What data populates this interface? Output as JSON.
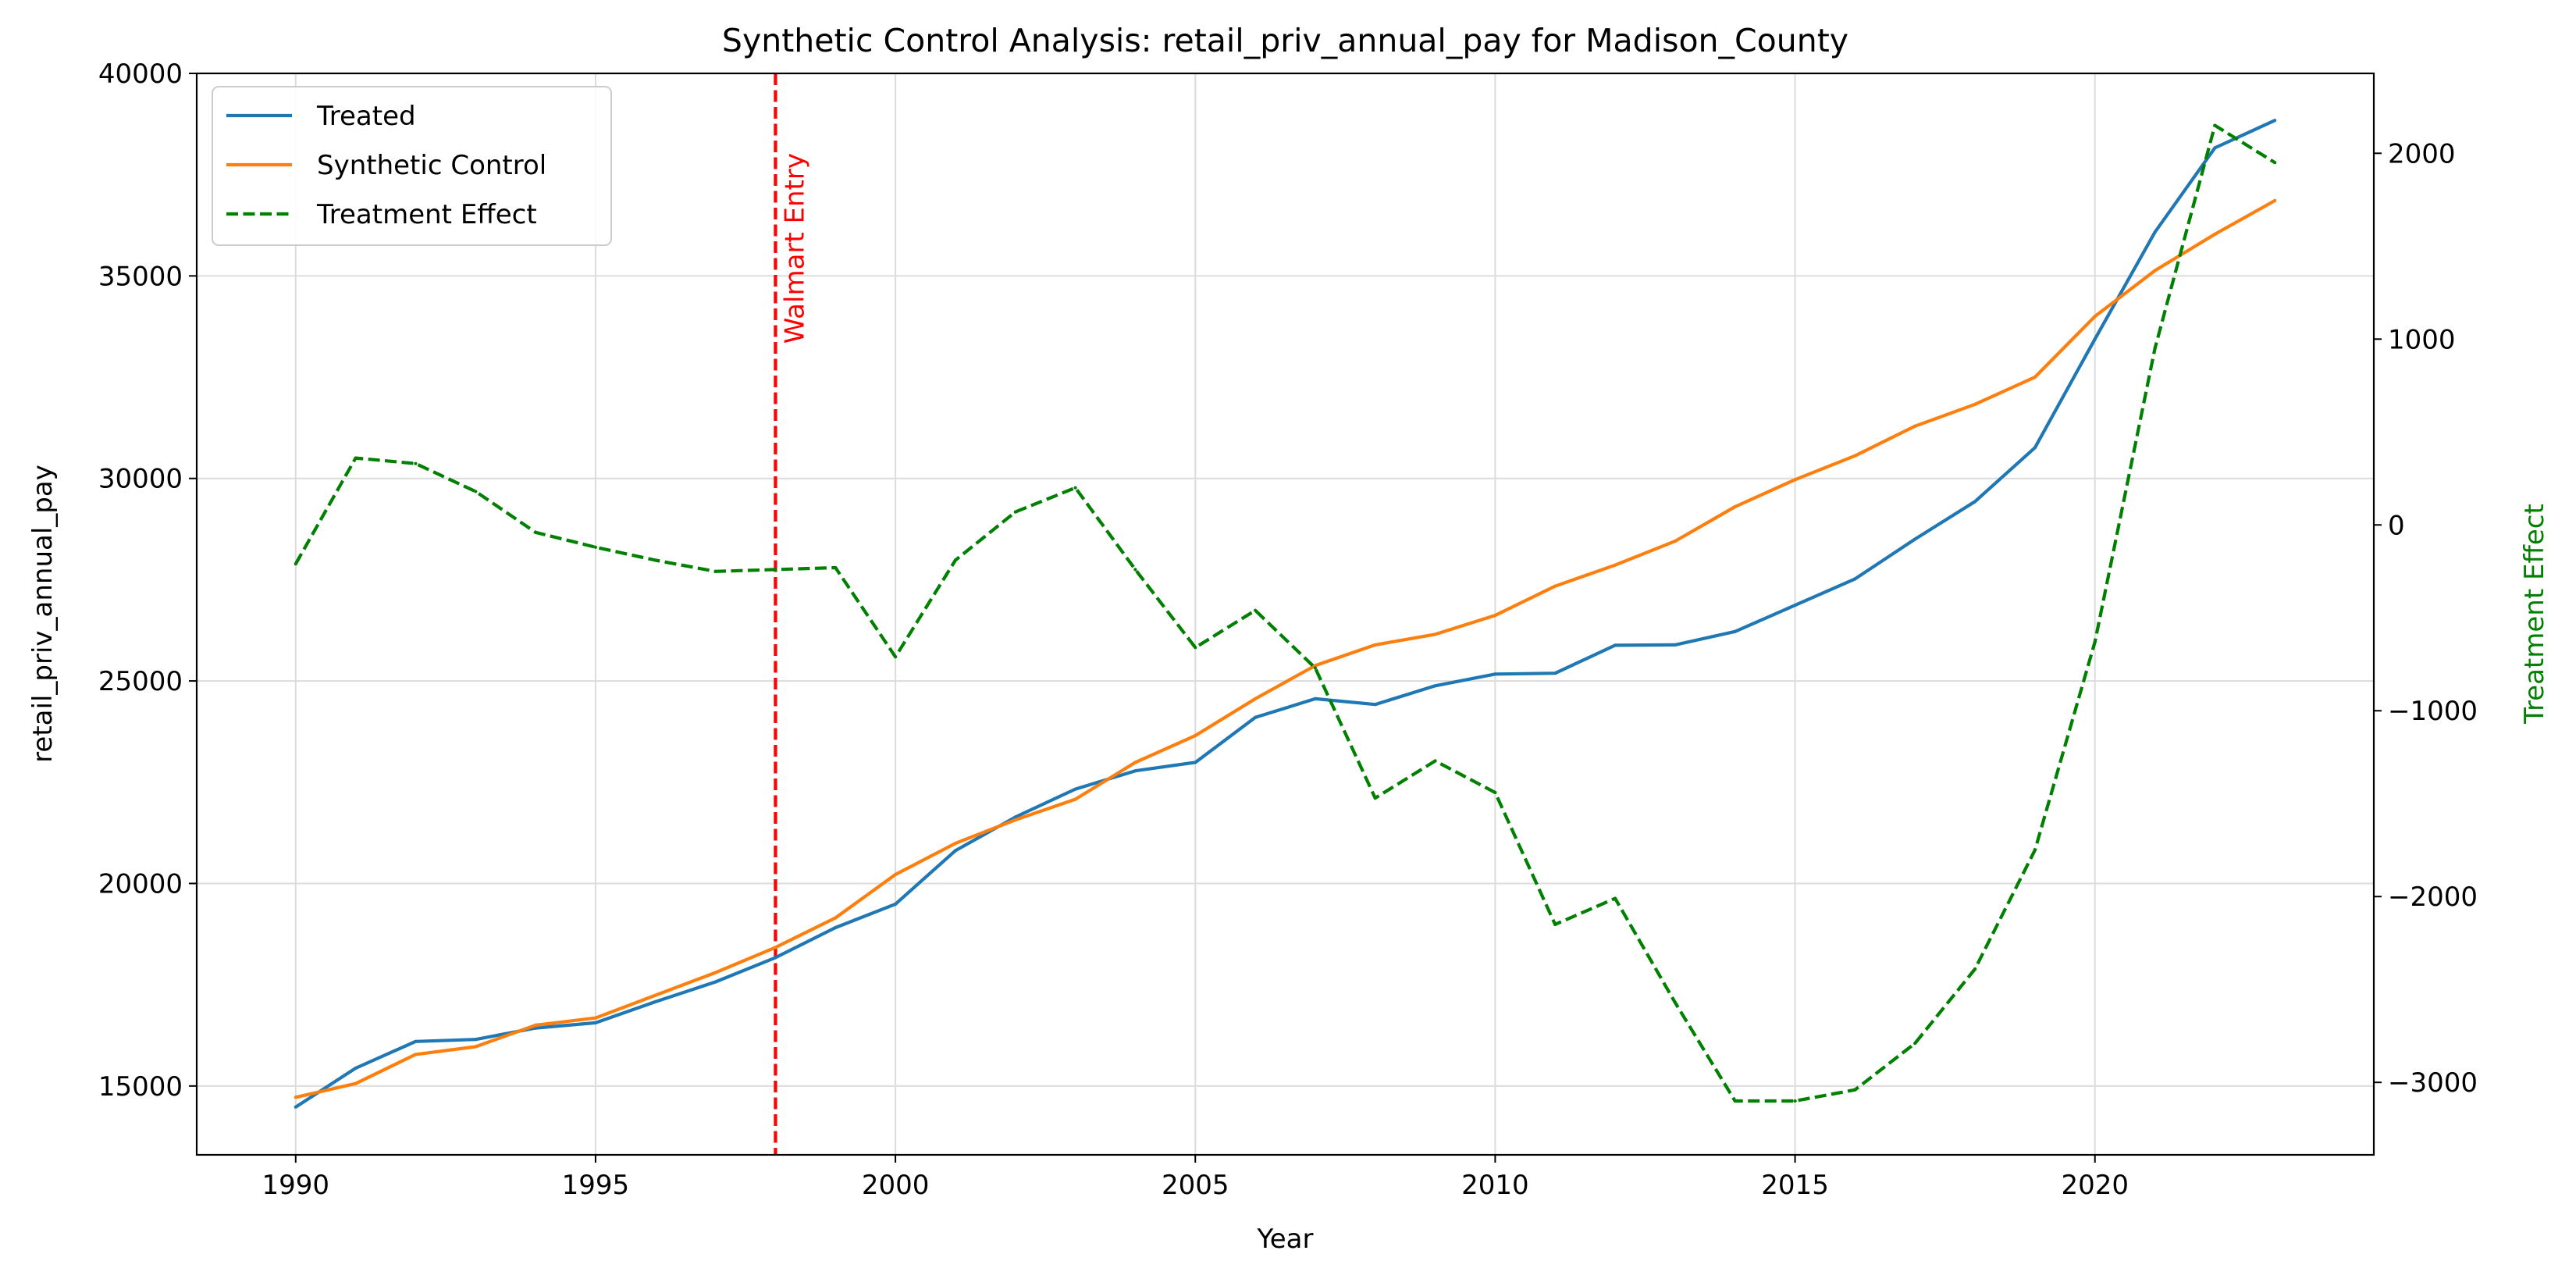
{
  "chart_data": {
    "type": "line",
    "title": "Synthetic Control Analysis: retail_priv_annual_pay for Madison_County",
    "xlabel": "Year",
    "ylabel": "retail_priv_annual_pay",
    "y2label": "Treatment Effect",
    "y2label_color": "#008000",
    "xlim": [
      1988.35,
      2024.65
    ],
    "xticks": [
      1990,
      1995,
      2000,
      2005,
      2010,
      2015,
      2020
    ],
    "ylim": [
      13300,
      40000
    ],
    "yticks": [
      15000,
      20000,
      25000,
      30000,
      35000,
      40000
    ],
    "y2lim": [
      -3390,
      2430
    ],
    "y2ticks": [
      -3000,
      -2000,
      -1000,
      0,
      1000,
      2000
    ],
    "grid": true,
    "legend_position": "top-left",
    "x": [
      1990,
      1991,
      1992,
      1993,
      1994,
      1995,
      1996,
      1997,
      1998,
      1999,
      2000,
      2001,
      2002,
      2003,
      2004,
      2005,
      2006,
      2007,
      2008,
      2009,
      2010,
      2011,
      2012,
      2013,
      2014,
      2015,
      2016,
      2017,
      2018,
      2019,
      2020,
      2021,
      2022,
      2023
    ],
    "series": [
      {
        "name": "Treated",
        "color": "#1f77b4",
        "style": "solid",
        "axis": "left",
        "values": [
          14480,
          15440,
          16100,
          16150,
          16430,
          16560,
          17080,
          17570,
          18170,
          18910,
          19490,
          20810,
          21640,
          22330,
          22780,
          22990,
          24100,
          24560,
          24420,
          24880,
          25170,
          25190,
          25880,
          25890,
          26220,
          26870,
          27520,
          28500,
          29430,
          30760,
          33440,
          36080,
          38160,
          38840
        ]
      },
      {
        "name": "Synthetic Control",
        "color": "#ff7f0e",
        "style": "solid",
        "axis": "left",
        "values": [
          14720,
          15060,
          15780,
          15970,
          16500,
          16680,
          17240,
          17800,
          18420,
          19150,
          20220,
          20990,
          21570,
          22080,
          22990,
          23650,
          24560,
          25380,
          25890,
          26150,
          26620,
          27340,
          27860,
          28450,
          29300,
          29970,
          30560,
          31290,
          31830,
          32500,
          34000,
          35130,
          36030,
          36860
        ]
      },
      {
        "name": "Treatment Effect",
        "color": "#008000",
        "style": "dashed",
        "axis": "right",
        "values": [
          -210,
          360,
          330,
          180,
          -40,
          -120,
          -190,
          -250,
          -240,
          -230,
          -710,
          -190,
          70,
          200,
          -240,
          -660,
          -460,
          -770,
          -1470,
          -1270,
          -1440,
          -2150,
          -2010,
          -2570,
          -3100,
          -3100,
          -3040,
          -2790,
          -2390,
          -1750,
          -630,
          950,
          2150,
          1950
        ]
      }
    ],
    "annotation": {
      "label": "Walmart Entry",
      "x": 1998,
      "color": "#ff0000"
    }
  }
}
